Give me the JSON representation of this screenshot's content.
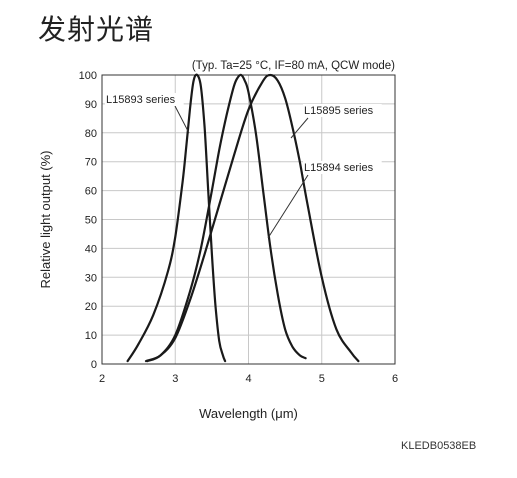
{
  "page": {
    "title": "发射光谱",
    "figure_code": "KLEDB0538EB"
  },
  "chart_data": {
    "type": "line",
    "title": "",
    "condition": "(Typ. Ta=25 °C, IF=80 mA, QCW mode)",
    "xlabel": "Wavelength (μm)",
    "ylabel": "Relative light output (%)",
    "xlim": [
      2,
      6
    ],
    "ylim": [
      0,
      100
    ],
    "xticks": [
      2,
      3,
      4,
      5,
      6
    ],
    "yticks": [
      0,
      10,
      20,
      30,
      40,
      50,
      60,
      70,
      80,
      90,
      100
    ],
    "grid": true,
    "series": [
      {
        "name": "L15893 series",
        "x": [
          2.35,
          2.5,
          2.7,
          2.9,
          3.0,
          3.1,
          3.15,
          3.2,
          3.25,
          3.3,
          3.35,
          3.4,
          3.45,
          3.5,
          3.55,
          3.6,
          3.65,
          3.68
        ],
        "y": [
          1,
          7,
          17,
          32,
          44,
          63,
          75,
          88,
          98,
          100,
          96,
          82,
          60,
          38,
          20,
          8,
          3,
          1
        ]
      },
      {
        "name": "L15894 series",
        "x": [
          2.62,
          2.8,
          3.0,
          3.2,
          3.35,
          3.5,
          3.6,
          3.7,
          3.8,
          3.85,
          3.9,
          3.95,
          4.0,
          4.1,
          4.2,
          4.3,
          4.4,
          4.5,
          4.6,
          4.7,
          4.78
        ],
        "y": [
          1,
          3,
          10,
          25,
          40,
          60,
          74,
          86,
          96,
          99,
          100,
          98,
          94,
          80,
          60,
          40,
          24,
          12,
          6,
          3,
          2
        ]
      },
      {
        "name": "L15895 series",
        "x": [
          2.6,
          2.8,
          3.0,
          3.2,
          3.4,
          3.6,
          3.8,
          4.0,
          4.2,
          4.3,
          4.4,
          4.5,
          4.6,
          4.7,
          4.8,
          5.0,
          5.2,
          5.4,
          5.5
        ],
        "y": [
          1,
          3,
          9,
          22,
          38,
          55,
          72,
          88,
          98,
          100,
          98,
          92,
          82,
          70,
          56,
          30,
          12,
          4,
          1
        ]
      }
    ],
    "annotations": [
      {
        "label": "L15893 series",
        "series": "L15893 series"
      },
      {
        "label": "L15895 series",
        "series": "L15895 series"
      },
      {
        "label": "L15894 series",
        "series": "L15894 series"
      }
    ]
  }
}
